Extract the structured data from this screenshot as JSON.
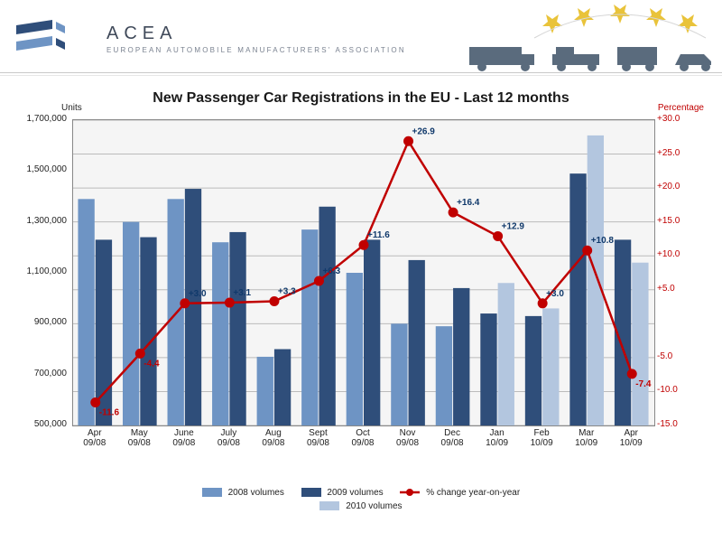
{
  "header": {
    "brand": "ACEA",
    "tagline": "EUROPEAN AUTOMOBILE MANUFACTURERS' ASSOCIATION"
  },
  "chart": {
    "type": "bar+line",
    "title": "New Passenger Car Registrations in the EU - Last 12 months",
    "y_left": {
      "title": "Units",
      "min": 500000,
      "max": 1700000,
      "step": 200000,
      "ticks": [
        "500,000",
        "700,000",
        "900,000",
        "1,100,000",
        "1,300,000",
        "1,500,000",
        "1,700,000"
      ]
    },
    "y_right": {
      "title": "Percentage",
      "min": -15,
      "max": 30,
      "step": 5,
      "ticks": [
        "-15.0",
        "-10.0",
        "-5.0",
        "",
        "+5.0",
        "+10.0",
        "+15.0",
        "+20.0",
        "+25.0",
        "+30.0"
      ]
    },
    "categories": [
      "Apr\n09/08",
      "May\n09/08",
      "June\n09/08",
      "July\n09/08",
      "Aug\n09/08",
      "Sept\n09/08",
      "Oct\n09/08",
      "Nov\n09/08",
      "Dec\n09/08",
      "Jan\n10/09",
      "Feb\n10/09",
      "Mar\n10/09",
      "Apr\n10/09"
    ],
    "series": {
      "vol2008": {
        "label": "2008 volumes",
        "color": "#6e94c4",
        "values": [
          1390000,
          1300000,
          1390000,
          1220000,
          770000,
          1270000,
          1100000,
          900000,
          890000,
          null,
          null,
          null,
          null
        ]
      },
      "vol2009": {
        "label": "2009 volumes",
        "color": "#2f4e7a",
        "values": [
          1230000,
          1240000,
          1430000,
          1260000,
          800000,
          1360000,
          1230000,
          1150000,
          1040000,
          940000,
          930000,
          1490000,
          1230000
        ]
      },
      "vol2010": {
        "label": "2010 volumes",
        "color": "#b3c6df",
        "values": [
          null,
          null,
          null,
          null,
          null,
          null,
          null,
          null,
          null,
          1060000,
          960000,
          1640000,
          1140000
        ]
      },
      "pct": {
        "label": "% change year-on-year",
        "color": "#c00000",
        "values": [
          -11.6,
          -4.4,
          3.0,
          3.1,
          3.3,
          6.3,
          11.6,
          26.9,
          16.4,
          12.9,
          3.0,
          10.8,
          -7.4
        ],
        "labels": [
          "-11.6",
          "-4.4",
          "+3.0",
          "+3.1",
          "+3.3",
          "+6.3",
          "+11.6",
          "+26.9",
          "+16.4",
          "+12.9",
          "+3.0",
          "+10.8",
          "-7.4"
        ]
      }
    },
    "plot_bg": "#f5f5f5",
    "grid_color": "#bbbbbb",
    "bar_group_width": 0.78,
    "bar_gap": 0.02,
    "line_width": 2.5,
    "marker_size": 5
  }
}
